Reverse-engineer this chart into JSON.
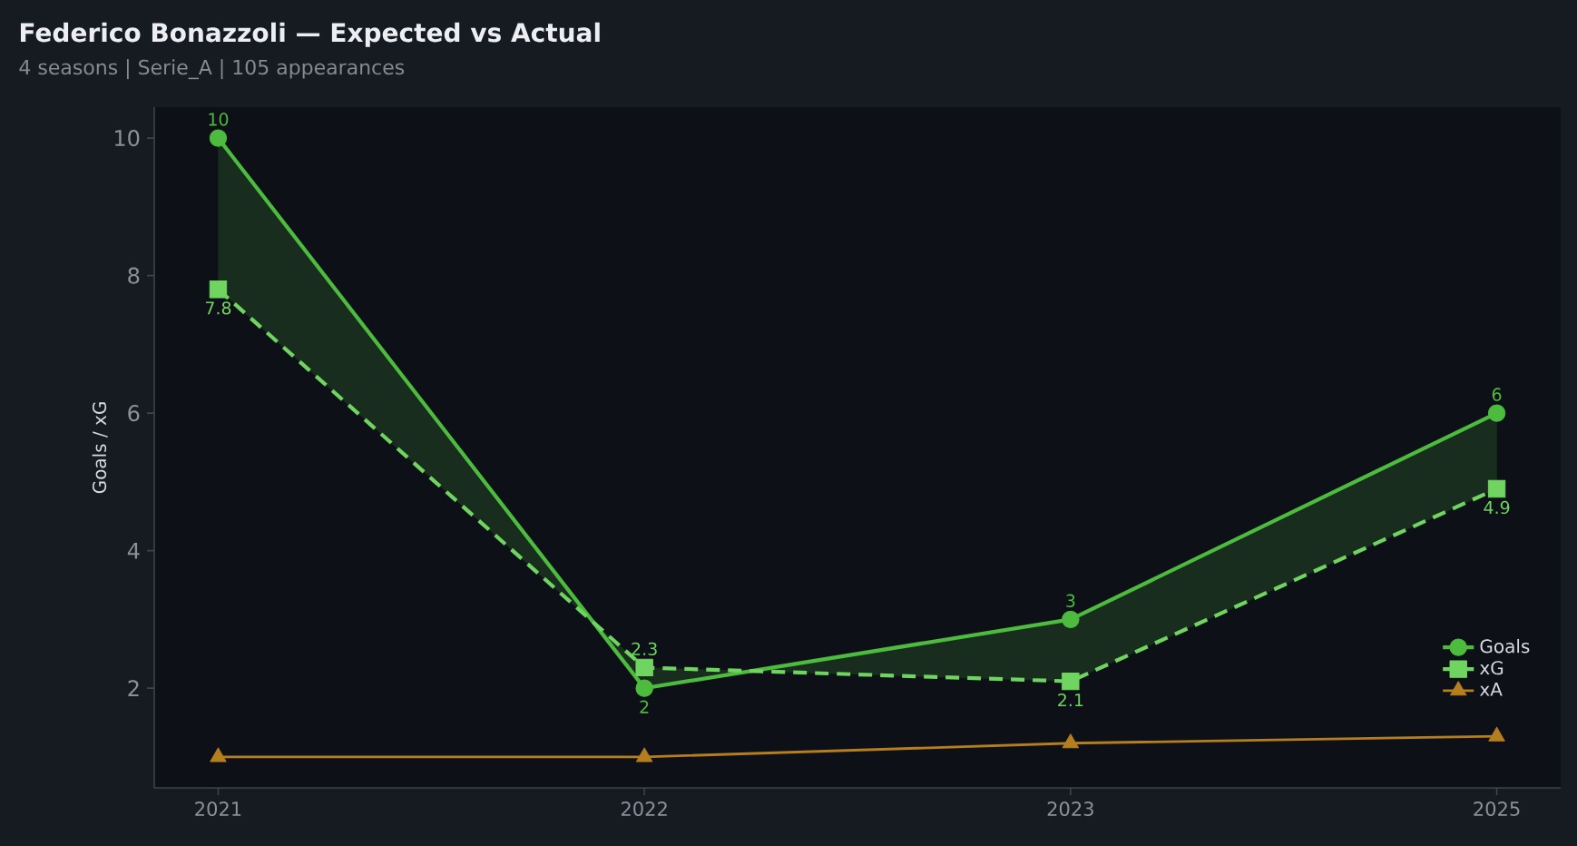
{
  "chart_data": {
    "type": "line",
    "title": "Federico Bonazzoli — Expected vs Actual",
    "subtitle": "4 seasons | Serie_A | 105 appearances",
    "ylabel": "Goals / xG",
    "categories": [
      "2021",
      "2022",
      "2023",
      "2025"
    ],
    "series": [
      {
        "name": "Goals",
        "color": "#4cbb3e",
        "values": [
          10,
          2,
          3,
          6
        ],
        "marker": "circle",
        "line_style": "solid",
        "value_labels": [
          "10",
          "2",
          "3",
          "6"
        ],
        "upper": [
          10,
          2,
          3,
          6
        ],
        "lower": [
          7.8,
          2.3,
          2.1,
          4.9
        ]
      },
      {
        "name": "xG",
        "color": "#6fd460",
        "values": [
          7.8,
          2.3,
          2.1,
          4.9
        ],
        "marker": "square",
        "line_style": "dashed",
        "value_labels": [
          "7.8",
          "2.3",
          "2.1",
          "4.9"
        ]
      },
      {
        "name": "xA",
        "color": "#b57e1e",
        "values": [
          1.0,
          1.0,
          1.2,
          1.3
        ],
        "marker": "triangle",
        "line_style": "solid"
      }
    ],
    "ylim": [
      0.55,
      10.45
    ],
    "yticks": [
      2,
      4,
      6,
      8,
      10
    ],
    "grid": false,
    "legend": "bottom right"
  }
}
